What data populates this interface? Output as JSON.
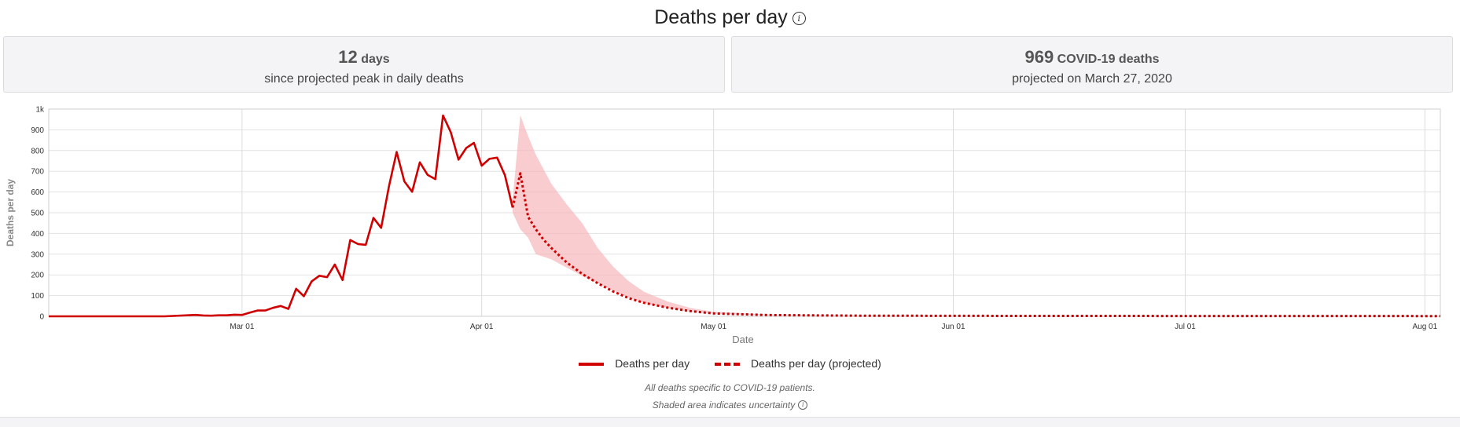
{
  "header": {
    "title": "Deaths per day",
    "info_icon": "info-icon"
  },
  "cards": [
    {
      "number": "12",
      "unit": "days",
      "subtitle": "since projected peak in daily deaths"
    },
    {
      "number": "969",
      "unit": "COVID-19 deaths",
      "subtitle": "projected on March 27, 2020"
    }
  ],
  "legend": {
    "actual": "Deaths per day",
    "projected": "Deaths per day (projected)"
  },
  "footnotes": {
    "line1": "All deaths specific to COVID-19 patients.",
    "line2": "Shaded area indicates uncertainty"
  },
  "colors": {
    "line": "#d00000",
    "band": "#f7b6bb",
    "card_bg": "#f4f4f6"
  },
  "chart_data": {
    "type": "line",
    "xlabel": "Date",
    "ylabel": "Deaths per day",
    "ylim": [
      0,
      1000
    ],
    "yticks": [
      0,
      100,
      200,
      300,
      400,
      500,
      600,
      700,
      800,
      900,
      1000
    ],
    "ytick_labels": [
      "0",
      "100",
      "200",
      "300",
      "400",
      "500",
      "600",
      "700",
      "800",
      "900",
      "1k"
    ],
    "xticks": [
      "2020-03-01",
      "2020-04-01",
      "2020-05-01",
      "2020-06-01",
      "2020-07-01",
      "2020-08-01"
    ],
    "xtick_labels": [
      "Mar 01",
      "Apr 01",
      "May 01",
      "Jun 01",
      "Jul 01",
      "Aug 01"
    ],
    "xlim": [
      "2020-02-05",
      "2020-08-03"
    ],
    "grid": true,
    "legend_position": "bottom",
    "series": [
      {
        "name": "Deaths per day",
        "style": "solid",
        "points": [
          [
            "2020-02-05",
            0
          ],
          [
            "2020-02-20",
            0
          ],
          [
            "2020-02-24",
            7
          ],
          [
            "2020-02-25",
            4
          ],
          [
            "2020-02-26",
            3
          ],
          [
            "2020-02-27",
            5
          ],
          [
            "2020-02-28",
            5
          ],
          [
            "2020-02-29",
            8
          ],
          [
            "2020-03-01",
            7
          ],
          [
            "2020-03-02",
            18
          ],
          [
            "2020-03-03",
            28
          ],
          [
            "2020-03-04",
            28
          ],
          [
            "2020-03-05",
            41
          ],
          [
            "2020-03-06",
            50
          ],
          [
            "2020-03-07",
            36
          ],
          [
            "2020-03-08",
            133
          ],
          [
            "2020-03-09",
            97
          ],
          [
            "2020-03-10",
            168
          ],
          [
            "2020-03-11",
            196
          ],
          [
            "2020-03-12",
            189
          ],
          [
            "2020-03-13",
            250
          ],
          [
            "2020-03-14",
            175
          ],
          [
            "2020-03-15",
            368
          ],
          [
            "2020-03-16",
            349
          ],
          [
            "2020-03-17",
            345
          ],
          [
            "2020-03-18",
            475
          ],
          [
            "2020-03-19",
            427
          ],
          [
            "2020-03-20",
            627
          ],
          [
            "2020-03-21",
            793
          ],
          [
            "2020-03-22",
            651
          ],
          [
            "2020-03-23",
            601
          ],
          [
            "2020-03-24",
            743
          ],
          [
            "2020-03-25",
            683
          ],
          [
            "2020-03-26",
            662
          ],
          [
            "2020-03-27",
            969
          ],
          [
            "2020-03-28",
            889
          ],
          [
            "2020-03-29",
            756
          ],
          [
            "2020-03-30",
            812
          ],
          [
            "2020-03-31",
            837
          ],
          [
            "2020-04-01",
            727
          ],
          [
            "2020-04-02",
            760
          ],
          [
            "2020-04-03",
            766
          ],
          [
            "2020-04-04",
            681
          ],
          [
            "2020-04-05",
            525
          ]
        ]
      },
      {
        "name": "Deaths per day (projected)",
        "style": "dashed",
        "points": [
          [
            "2020-04-05",
            525
          ],
          [
            "2020-04-06",
            690
          ],
          [
            "2020-04-07",
            480
          ],
          [
            "2020-04-08",
            420
          ],
          [
            "2020-04-09",
            370
          ],
          [
            "2020-04-10",
            330
          ],
          [
            "2020-04-12",
            260
          ],
          [
            "2020-04-14",
            205
          ],
          [
            "2020-04-16",
            160
          ],
          [
            "2020-04-18",
            120
          ],
          [
            "2020-04-20",
            88
          ],
          [
            "2020-04-22",
            65
          ],
          [
            "2020-04-25",
            42
          ],
          [
            "2020-04-28",
            25
          ],
          [
            "2020-05-01",
            14
          ],
          [
            "2020-05-08",
            6
          ],
          [
            "2020-05-20",
            3
          ],
          [
            "2020-06-10",
            2
          ],
          [
            "2020-08-03",
            1
          ]
        ]
      }
    ],
    "uncertainty_band": {
      "points": [
        [
          "2020-04-05",
          560,
          500
        ],
        [
          "2020-04-06",
          970,
          420
        ],
        [
          "2020-04-07",
          870,
          380
        ],
        [
          "2020-04-08",
          780,
          300
        ],
        [
          "2020-04-10",
          640,
          275
        ],
        [
          "2020-04-12",
          540,
          235
        ],
        [
          "2020-04-14",
          450,
          195
        ],
        [
          "2020-04-16",
          330,
          160
        ],
        [
          "2020-04-18",
          240,
          125
        ],
        [
          "2020-04-20",
          170,
          90
        ],
        [
          "2020-04-22",
          118,
          65
        ],
        [
          "2020-04-25",
          72,
          40
        ],
        [
          "2020-04-28",
          40,
          22
        ],
        [
          "2020-05-01",
          22,
          12
        ],
        [
          "2020-05-08",
          9,
          5
        ],
        [
          "2020-05-20",
          4,
          2
        ],
        [
          "2020-06-10",
          2,
          1
        ],
        [
          "2020-08-03",
          1,
          0
        ]
      ]
    }
  }
}
